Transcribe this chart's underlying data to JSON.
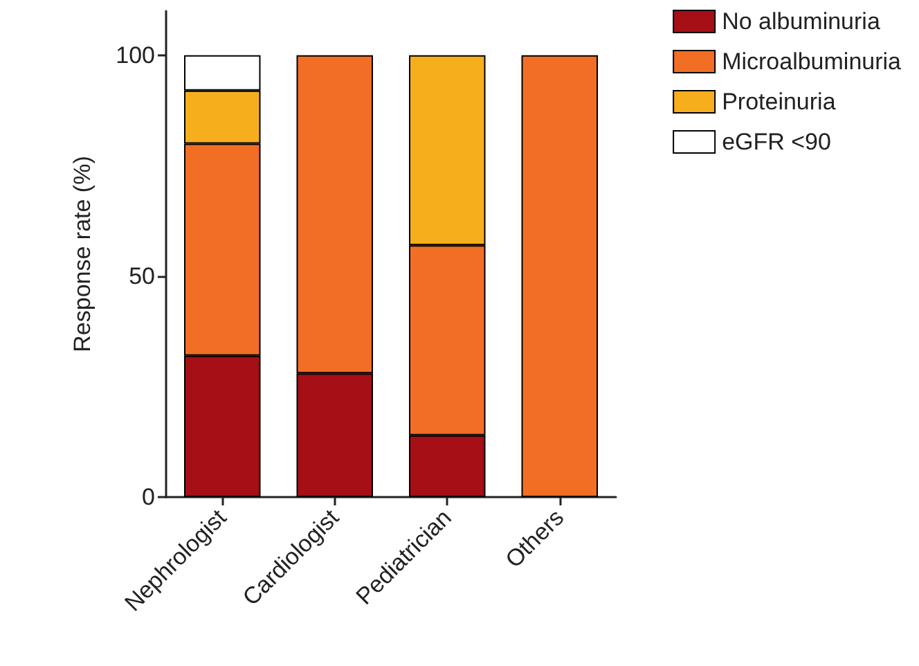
{
  "chart_data": {
    "type": "bar",
    "ylabel": "Response rate (%)",
    "categories": [
      "Nephrologist",
      "Cardiologist",
      "Pediatrician",
      "Others"
    ],
    "stacked": true,
    "series": [
      {
        "name": "No albuminuria",
        "color": "#a50f15",
        "values": [
          32,
          28,
          14,
          0
        ]
      },
      {
        "name": "Microalbuminuria",
        "color": "#f26e24",
        "values": [
          48,
          72,
          43,
          100
        ]
      },
      {
        "name": "Proteinuria",
        "color": "#f7ae1c",
        "values": [
          12,
          0,
          43,
          0
        ]
      },
      {
        "name": "eGFR <90",
        "color": "#ffffff",
        "values": [
          8,
          0,
          0,
          0
        ]
      }
    ],
    "ylim": [
      0,
      110
    ],
    "yticks": [
      0,
      50,
      100
    ],
    "grid": false,
    "legend": "top right"
  }
}
